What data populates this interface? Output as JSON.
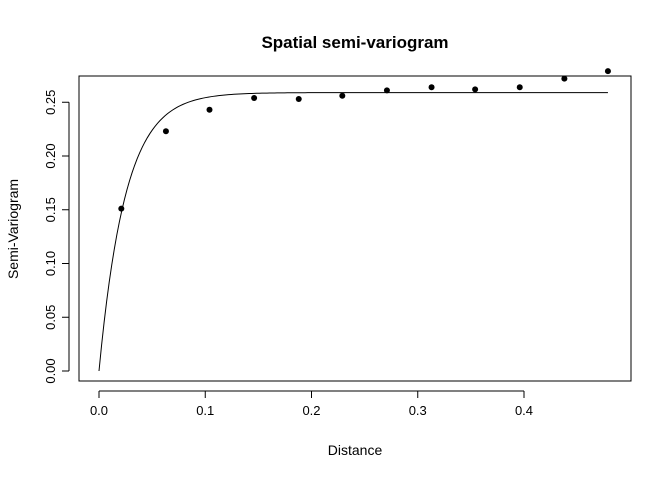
{
  "chart_data": {
    "type": "scatter",
    "title": "Spatial semi-variogram",
    "xlabel": "Distance",
    "ylabel": "Semi-Variogram",
    "xlim": [
      0,
      0.48
    ],
    "ylim": [
      0,
      0.28
    ],
    "x_ticks": [
      "0.0",
      "0.1",
      "0.2",
      "0.3",
      "0.4"
    ],
    "y_ticks": [
      "0.00",
      "0.05",
      "0.10",
      "0.15",
      "0.20",
      "0.25"
    ],
    "grid": false,
    "legend": "none",
    "points": [
      {
        "x": 0.021,
        "y": 0.151
      },
      {
        "x": 0.063,
        "y": 0.223
      },
      {
        "x": 0.104,
        "y": 0.243
      },
      {
        "x": 0.146,
        "y": 0.254
      },
      {
        "x": 0.188,
        "y": 0.253
      },
      {
        "x": 0.229,
        "y": 0.256
      },
      {
        "x": 0.271,
        "y": 0.261
      },
      {
        "x": 0.313,
        "y": 0.264
      },
      {
        "x": 0.354,
        "y": 0.262
      },
      {
        "x": 0.396,
        "y": 0.264
      },
      {
        "x": 0.438,
        "y": 0.272
      },
      {
        "x": 0.479,
        "y": 0.279
      }
    ],
    "fitted_curve": {
      "model": "exponential",
      "nugget": 0,
      "sill": 0.259,
      "range": 0.025,
      "x_max": 0.479
    },
    "colors": {
      "points": "#000000",
      "curve": "#000000",
      "axes": "#000000"
    }
  }
}
